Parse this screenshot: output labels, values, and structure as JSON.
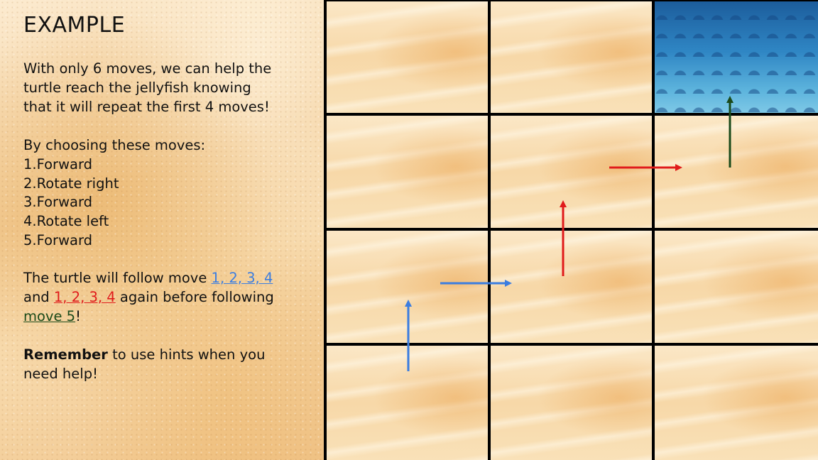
{
  "title": "EXAMPLE",
  "intro": {
    "line1": "With only 6 moves, we can help the",
    "line2": "turtle reach the jellyfish knowing",
    "line3": "that it will repeat the first 4 moves!"
  },
  "moves_heading": "By choosing these moves:",
  "moves": [
    "1.Forward",
    "2.Rotate right",
    "3.Forward",
    "4.Rotate left",
    "5.Forward"
  ],
  "follow": {
    "part1": "The turtle will follow move ",
    "blue_moves": "1, 2, 3, 4",
    "part2_and": "and ",
    "red_moves": "1, 2, 3, 4",
    "part3": " again before following",
    "green_move": "move 5",
    "part4": "!"
  },
  "remember": {
    "bold": "Remember",
    "rest": " to use hints when you",
    "line2": "need help!"
  },
  "grid": {
    "rows": 4,
    "cols": 3,
    "cells": [
      [
        "sand",
        "sand",
        "water"
      ],
      [
        "sand",
        "sand",
        "sand"
      ],
      [
        "sand",
        "sand",
        "sand"
      ],
      [
        "sand",
        "sand",
        "sand"
      ]
    ]
  },
  "colors": {
    "blue_arrow": "#3b7de0",
    "red_arrow": "#e01b1b",
    "green_arrow": "#1a4a1a"
  }
}
